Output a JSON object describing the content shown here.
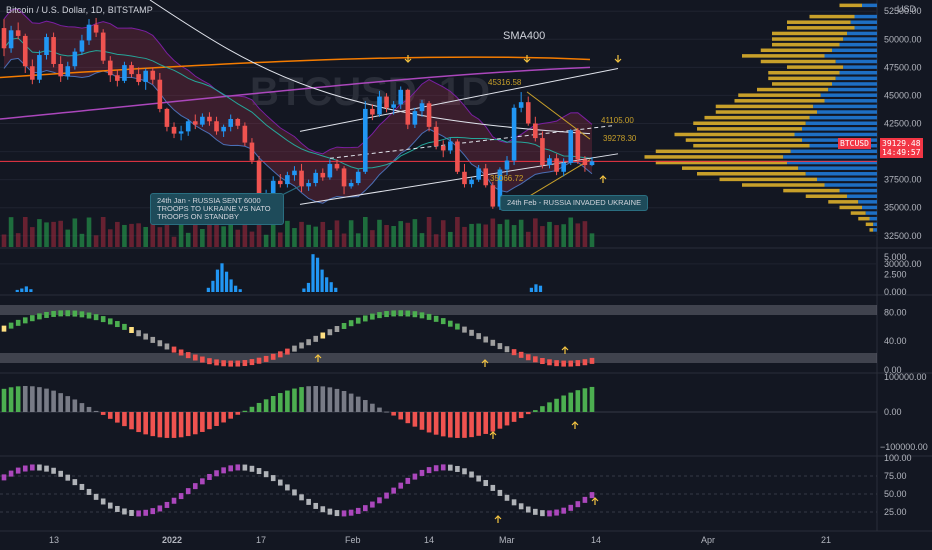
{
  "header": {
    "title": "Bitcoin / U.S. Dollar, 1D, BITSTAMP",
    "currency": "USD"
  },
  "price_axis": {
    "ticks": [
      "52500.00",
      "50000.00",
      "47500.00",
      "45000.00",
      "42500.00",
      "40000.00",
      "37500.00",
      "35000.00",
      "32500.00",
      "30000.00"
    ],
    "current_symbol": "BTCUSD",
    "current_price": "39129.48",
    "countdown": "14:49:57"
  },
  "volume_axis": {
    "ticks": [
      "5.000",
      "2.500",
      "0.000"
    ]
  },
  "osc1_axis": {
    "ticks": [
      "80.00",
      "40.00",
      "0.00"
    ]
  },
  "osc2_axis": {
    "ticks": [
      "100000.00",
      "0.00",
      "−100000.00"
    ]
  },
  "osc3_axis": {
    "ticks": [
      "100.00",
      "75.00",
      "50.00",
      "25.00"
    ]
  },
  "time_axis": {
    "ticks": [
      "13",
      "2022",
      "17",
      "Feb",
      "14",
      "Mar",
      "14",
      "Apr",
      "21"
    ]
  },
  "annotations": {
    "sma_label": "SMA400",
    "high_label": "45316.58",
    "level1": "41105.00",
    "level2": "39278.30",
    "low_label": "35066.72",
    "note1": "24th Jan - RUSSIA SENT 6000 TROOPS TO UKRAINE VS NATO TROOPS ON STANDBY",
    "note2": "24th Feb - RUSSIA INVADED UKRAINE",
    "watermark": "BTCUSD, 1D"
  },
  "colors": {
    "up": "#26a69a",
    "up_candle": "#2196f3",
    "down": "#ef5350",
    "sma_orange": "#f57c00",
    "sma_purple": "#9c27b0",
    "profile_gold": "#c8a02a",
    "profile_blue": "#1e6fc4",
    "price_line": "#f23645"
  },
  "chart_data": {
    "type": "candlestick",
    "symbol": "BTCUSD",
    "timeframe": "1D",
    "exchange": "BITSTAMP",
    "y_range": [
      31500,
      53500
    ],
    "candles": [
      [
        51000,
        51800,
        48500,
        49200
      ],
      [
        49200,
        51200,
        48800,
        50800
      ],
      [
        50800,
        51500,
        50000,
        50300
      ],
      [
        50300,
        50500,
        47000,
        47600
      ],
      [
        47600,
        48200,
        46000,
        46400
      ],
      [
        46400,
        49000,
        46100,
        48600
      ],
      [
        48600,
        50500,
        48200,
        50200
      ],
      [
        50200,
        50600,
        47500,
        47800
      ],
      [
        47800,
        48500,
        46200,
        46700
      ],
      [
        46700,
        48000,
        46400,
        47600
      ],
      [
        47600,
        49200,
        47300,
        48900
      ],
      [
        48900,
        50400,
        48600,
        49900
      ],
      [
        49900,
        51800,
        49500,
        51300
      ],
      [
        51300,
        51900,
        50200,
        50600
      ],
      [
        50600,
        50900,
        47800,
        48100
      ],
      [
        48100,
        48500,
        46200,
        46800
      ],
      [
        46800,
        47300,
        45800,
        46300
      ],
      [
        46300,
        48000,
        46100,
        47700
      ],
      [
        47700,
        48000,
        46600,
        46900
      ],
      [
        46900,
        47500,
        45900,
        46200
      ],
      [
        46200,
        47400,
        45500,
        47200
      ],
      [
        47200,
        47500,
        46000,
        46400
      ],
      [
        46400,
        47000,
        43500,
        43800
      ],
      [
        43800,
        43900,
        41800,
        42200
      ],
      [
        42200,
        42600,
        41200,
        41600
      ],
      [
        41600,
        42300,
        41000,
        41800
      ],
      [
        41800,
        42900,
        41400,
        42700
      ],
      [
        42700,
        43300,
        42000,
        42400
      ],
      [
        42400,
        43400,
        42200,
        43100
      ],
      [
        43100,
        43500,
        42300,
        42700
      ],
      [
        42700,
        43100,
        41500,
        41800
      ],
      [
        41800,
        42400,
        41300,
        42200
      ],
      [
        42200,
        43300,
        41800,
        42900
      ],
      [
        42900,
        43000,
        42000,
        42300
      ],
      [
        42300,
        42600,
        40500,
        40800
      ],
      [
        40800,
        41200,
        38900,
        39200
      ],
      [
        39200,
        39600,
        34800,
        35100
      ],
      [
        35100,
        36600,
        34600,
        36300
      ],
      [
        36300,
        37800,
        36000,
        37400
      ],
      [
        37400,
        38000,
        36800,
        37100
      ],
      [
        37100,
        38200,
        36800,
        37900
      ],
      [
        37900,
        38700,
        37400,
        38300
      ],
      [
        38300,
        38900,
        36400,
        36900
      ],
      [
        36900,
        37500,
        36500,
        37200
      ],
      [
        37200,
        38400,
        36900,
        38100
      ],
      [
        38100,
        38500,
        37400,
        37700
      ],
      [
        37700,
        39300,
        37500,
        38900
      ],
      [
        38900,
        39300,
        38300,
        38500
      ],
      [
        38500,
        38700,
        36200,
        36900
      ],
      [
        36900,
        37500,
        36700,
        37200
      ],
      [
        37200,
        38400,
        37000,
        38200
      ],
      [
        38200,
        44500,
        38000,
        43800
      ],
      [
        43800,
        44200,
        42800,
        43300
      ],
      [
        43300,
        45400,
        43100,
        44900
      ],
      [
        44900,
        45200,
        43500,
        43900
      ],
      [
        43900,
        44500,
        43300,
        44200
      ],
      [
        44200,
        45800,
        43800,
        45500
      ],
      [
        45500,
        45600,
        42000,
        42400
      ],
      [
        42400,
        43900,
        42100,
        43600
      ],
      [
        43600,
        44600,
        43100,
        44300
      ],
      [
        44300,
        44500,
        41800,
        42200
      ],
      [
        42200,
        42700,
        40200,
        40500
      ],
      [
        40500,
        41000,
        39500,
        40100
      ],
      [
        40100,
        41200,
        39800,
        40900
      ],
      [
        40900,
        41100,
        38000,
        38200
      ],
      [
        38200,
        38900,
        36800,
        37100
      ],
      [
        37100,
        37700,
        36800,
        37500
      ],
      [
        37500,
        38800,
        37300,
        38500
      ],
      [
        38500,
        38900,
        36800,
        37000
      ],
      [
        37000,
        37300,
        34900,
        35100
      ],
      [
        35100,
        38600,
        34800,
        38400
      ],
      [
        38400,
        39600,
        37900,
        39200
      ],
      [
        39200,
        44200,
        38800,
        43900
      ],
      [
        43900,
        45300,
        43500,
        44400
      ],
      [
        44400,
        44900,
        42300,
        42500
      ],
      [
        42500,
        43100,
        40900,
        41200
      ],
      [
        41200,
        41800,
        38500,
        38800
      ],
      [
        38800,
        39700,
        38500,
        39400
      ],
      [
        39400,
        39800,
        37900,
        38200
      ],
      [
        38200,
        39400,
        37800,
        39000
      ],
      [
        39000,
        42000,
        38800,
        41900
      ],
      [
        41900,
        42100,
        38900,
        39300
      ],
      [
        39300,
        39600,
        38200,
        38800
      ],
      [
        38800,
        39500,
        38700,
        39129
      ]
    ],
    "horizontal_levels": [
      {
        "label": "41105.00",
        "value": 41105
      },
      {
        "label": "39278.30",
        "value": 39278
      }
    ],
    "marked_points": [
      {
        "label": "45316.58",
        "value": 45316.58
      },
      {
        "label": "35066.72",
        "value": 35066.72
      }
    ],
    "current_price": 39129.48,
    "price_ticks": [
      52500,
      50000,
      47500,
      45000,
      42500,
      40000,
      37500,
      35000,
      32500,
      30000
    ],
    "volume_profile": [
      [
        53000,
        0.2,
        0.3
      ],
      [
        52000,
        0.3,
        0.6
      ],
      [
        51500,
        0.35,
        0.85
      ],
      [
        51000,
        0.3,
        0.9
      ],
      [
        50500,
        0.4,
        1.0
      ],
      [
        50000,
        0.45,
        0.95
      ],
      [
        49500,
        0.5,
        0.9
      ],
      [
        49000,
        0.6,
        0.95
      ],
      [
        48500,
        0.7,
        1.1
      ],
      [
        48000,
        0.55,
        1.0
      ],
      [
        47500,
        0.45,
        0.75
      ],
      [
        47000,
        0.5,
        0.95
      ],
      [
        46500,
        0.55,
        0.9
      ],
      [
        46000,
        0.6,
        0.8
      ],
      [
        45500,
        0.65,
        0.95
      ],
      [
        45000,
        0.75,
        1.1
      ],
      [
        44500,
        0.7,
        1.2
      ],
      [
        44000,
        0.85,
        1.3
      ],
      [
        43500,
        0.8,
        1.35
      ],
      [
        43000,
        0.9,
        1.4
      ],
      [
        42500,
        0.95,
        1.5
      ],
      [
        42000,
        1.0,
        1.4
      ],
      [
        41500,
        1.1,
        1.6
      ],
      [
        41000,
        1.0,
        1.55
      ],
      [
        40500,
        0.9,
        1.55
      ],
      [
        40000,
        1.15,
        1.8
      ],
      [
        39500,
        1.25,
        1.85
      ],
      [
        39000,
        1.2,
        1.75
      ],
      [
        38500,
        1.05,
        1.55
      ],
      [
        38000,
        0.95,
        1.45
      ],
      [
        37500,
        0.8,
        1.3
      ],
      [
        37000,
        0.7,
        1.1
      ],
      [
        36500,
        0.5,
        0.75
      ],
      [
        36000,
        0.4,
        0.55
      ],
      [
        35500,
        0.25,
        0.4
      ],
      [
        35000,
        0.2,
        0.3
      ],
      [
        34500,
        0.15,
        0.2
      ],
      [
        34000,
        0.1,
        0.15
      ],
      [
        33500,
        0.05,
        0.1
      ],
      [
        33000,
        0.05,
        0.05
      ]
    ]
  }
}
